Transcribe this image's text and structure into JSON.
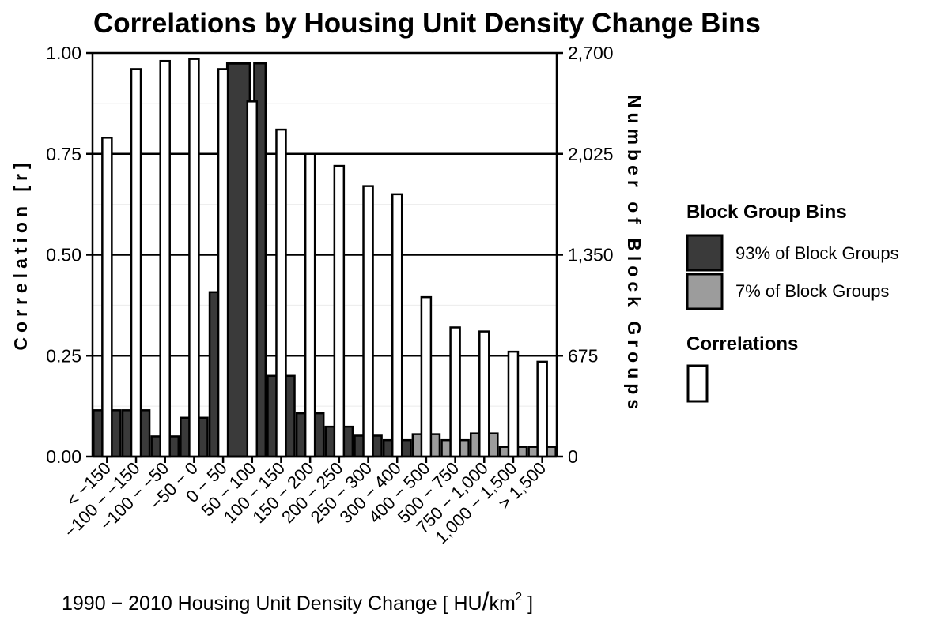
{
  "chart_data": {
    "type": "bar",
    "title": "Correlations by Housing Unit Density Change Bins",
    "xlabel_main": "1990 − 2010 Housing Unit Density Change [ HU",
    "xlabel_slash": "/",
    "xlabel_unit": "km",
    "xlabel_sup": "2",
    "xlabel_close": " ]",
    "ylabel_left": "Correlation [r]",
    "ylabel_right": "Number of Block Groups",
    "ylim_left": [
      0,
      1
    ],
    "ylim_right": [
      0,
      2700
    ],
    "left_ticks": [
      "0.00",
      "0.25",
      "0.50",
      "0.75",
      "1.00"
    ],
    "left_tick_values": [
      0,
      0.25,
      0.5,
      0.75,
      1
    ],
    "right_ticks": [
      "0",
      "675",
      "1,350",
      "2,025",
      "2,700"
    ],
    "categories": [
      "< −150",
      "−100 − −150",
      "−100 − −50",
      "−50 − 0",
      "0 − 50",
      "50 − 100",
      "100 − 150",
      "150 − 200",
      "200 − 250",
      "250 − 300",
      "300 − 400",
      "400 − 500",
      "500 − 750",
      "750 − 1,000",
      "1,000 − 1,500",
      "> 1,500"
    ],
    "series": [
      {
        "name": "Correlations",
        "axis": "left",
        "values": [
          0.79,
          0.96,
          0.98,
          0.985,
          0.96,
          0.88,
          0.81,
          0.75,
          0.72,
          0.67,
          0.65,
          0.395,
          0.32,
          0.31,
          0.26,
          0.235
        ]
      },
      {
        "name": "Number of Block Groups",
        "axis": "right",
        "values": [
          310,
          310,
          135,
          260,
          1100,
          2630,
          540,
          290,
          200,
          140,
          110,
          150,
          110,
          155,
          65,
          65
        ],
        "groups": [
          "93% of Block Groups",
          "93% of Block Groups",
          "93% of Block Groups",
          "93% of Block Groups",
          "93% of Block Groups",
          "93% of Block Groups",
          "93% of Block Groups",
          "93% of Block Groups",
          "93% of Block Groups",
          "93% of Block Groups",
          "93% of Block Groups",
          "7% of Block Groups",
          "7% of Block Groups",
          "7% of Block Groups",
          "7% of Block Groups",
          "7% of Block Groups"
        ]
      }
    ],
    "legend": {
      "bins_title": "Block Group Bins",
      "bins_items": [
        {
          "label": "93% of Block Groups",
          "color": "#3a3a3a"
        },
        {
          "label": "7% of Block Groups",
          "color": "#9c9c9c"
        }
      ],
      "corr_title": "Correlations",
      "corr_color": "#ffffff",
      "position": "right"
    },
    "colors": {
      "dark_bar": "#3a3a3a",
      "light_bar": "#9c9c9c",
      "corr_bar": "#ffffff",
      "stroke": "#000000",
      "minor_grid": "#ebebeb"
    }
  }
}
